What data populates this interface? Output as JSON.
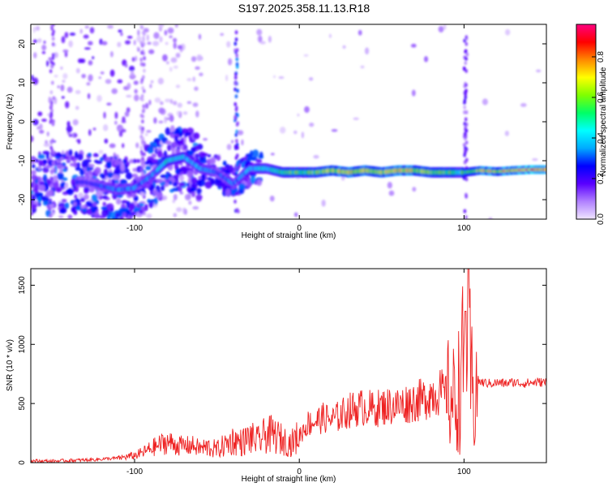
{
  "title": "S197.2025.358.11.13.R18",
  "chart_data": [
    {
      "type": "heatmap",
      "xlabel": "Height of straight line (km)",
      "ylabel": "Frequency (Hz)",
      "colorbar_label": "Normalized spectral amplitude",
      "xlim": [
        -163,
        150
      ],
      "ylim": [
        -25,
        25
      ],
      "clim": [
        0,
        0.96
      ],
      "x_ticks": [
        -100,
        0,
        100
      ],
      "y_ticks": [
        -20,
        -10,
        0,
        10,
        20
      ],
      "c_ticks": [
        0.0,
        0.2,
        0.4,
        0.6,
        0.8
      ],
      "colormap": [
        "#f0e6ff",
        "#b080ff",
        "#5a00ff",
        "#0000ff",
        "#00aaff",
        "#00ffff",
        "#00ff66",
        "#7fff00",
        "#ffff00",
        "#ff8800",
        "#ff0000",
        "#ff0080"
      ],
      "ridge": {
        "x": [
          -130,
          -120,
          -110,
          -100,
          -90,
          -80,
          -70,
          -60,
          -50,
          -40,
          -30,
          -20,
          -10,
          0,
          10,
          20,
          30,
          40,
          50,
          60,
          70,
          80,
          90,
          100,
          110,
          120,
          130,
          140,
          150
        ],
        "y": [
          -15.5,
          -16.5,
          -17.5,
          -17,
          -14,
          -10,
          -9,
          -12,
          -13,
          -16,
          -12,
          -12,
          -13,
          -13,
          -13,
          -12.5,
          -13,
          -12.5,
          -13,
          -12.5,
          -12.5,
          -13,
          -13,
          -13,
          -12.5,
          -12.8,
          -12.5,
          -12.3,
          -12.3
        ],
        "amplitude": [
          0.25,
          0.3,
          0.35,
          0.35,
          0.35,
          0.5,
          0.45,
          0.4,
          0.3,
          0.35,
          0.4,
          0.45,
          0.55,
          0.6,
          0.6,
          0.65,
          0.75,
          0.7,
          0.65,
          0.75,
          0.7,
          0.6,
          0.6,
          0.55,
          0.7,
          0.75,
          0.8,
          0.88,
          0.9
        ]
      }
    },
    {
      "type": "line",
      "xlabel": "Height of straight line (km)",
      "ylabel": "SNR (10 * v/v)",
      "xlim": [
        -163,
        150
      ],
      "ylim": [
        0,
        1640
      ],
      "x_ticks": [
        -100,
        0,
        100
      ],
      "y_ticks": [
        0,
        500,
        1000,
        1500
      ],
      "series": [
        {
          "color": "#ee2222",
          "x": [
            -163,
            -150,
            -140,
            -130,
            -120,
            -110,
            -100,
            -95,
            -90,
            -85,
            -80,
            -75,
            -70,
            -65,
            -60,
            -55,
            -50,
            -45,
            -40,
            -35,
            -30,
            -25,
            -20,
            -15,
            -10,
            -5,
            0,
            5,
            10,
            15,
            20,
            25,
            30,
            35,
            40,
            45,
            50,
            55,
            60,
            65,
            70,
            75,
            80,
            85,
            90,
            95,
            98,
            100,
            102,
            104,
            106,
            108,
            110,
            115,
            120,
            125,
            130,
            135,
            140,
            145,
            150
          ],
          "y": [
            15,
            12,
            18,
            22,
            30,
            38,
            60,
            85,
            120,
            150,
            175,
            150,
            140,
            145,
            120,
            130,
            110,
            150,
            190,
            170,
            210,
            180,
            240,
            230,
            190,
            160,
            230,
            330,
            350,
            380,
            360,
            400,
            440,
            460,
            470,
            450,
            470,
            480,
            480,
            500,
            520,
            530,
            580,
            600,
            560,
            520,
            700,
            880,
            1050,
            760,
            430,
            700,
            680,
            670,
            675,
            670,
            680,
            670,
            675,
            680,
            680
          ]
        }
      ]
    }
  ]
}
